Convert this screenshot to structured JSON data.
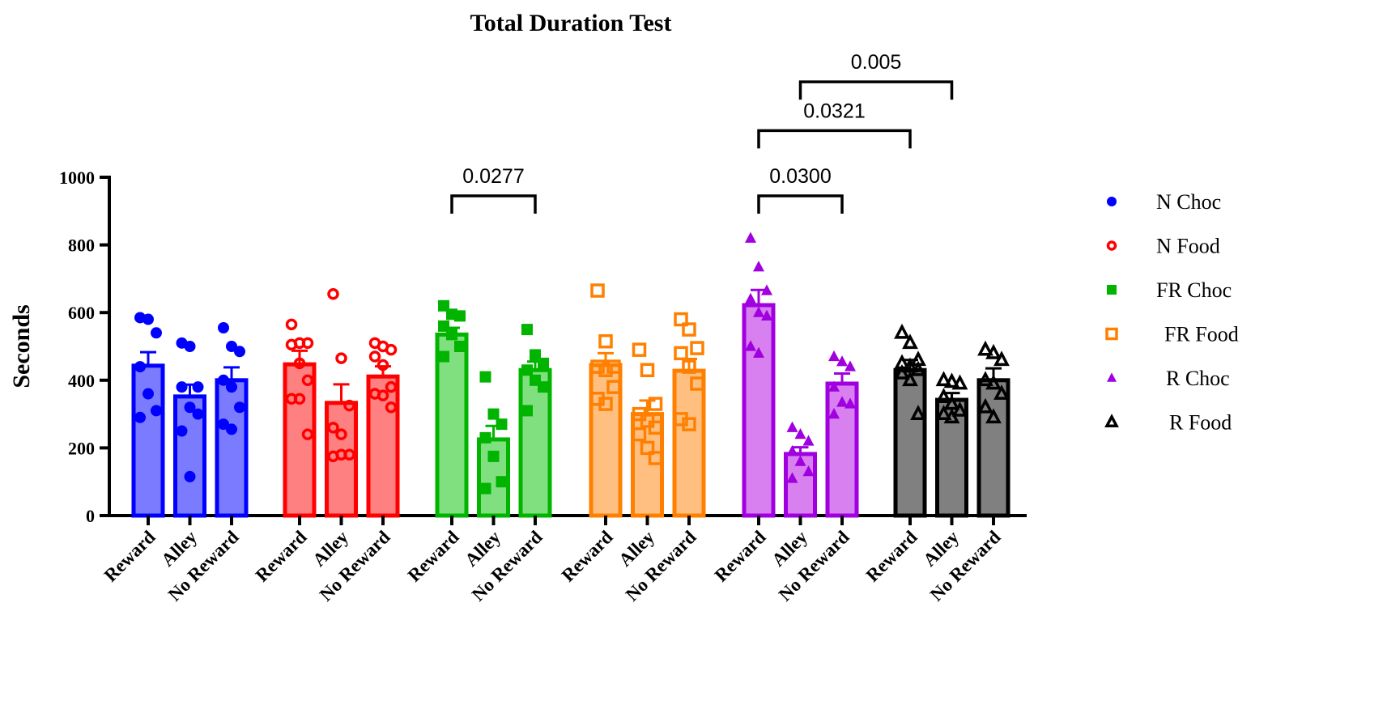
{
  "chart_data": {
    "type": "bar",
    "title": "Total Duration Test",
    "xlabel": "",
    "ylabel": "Seconds",
    "ylim": [
      0,
      1000
    ],
    "yticks": [
      0,
      200,
      400,
      600,
      800,
      1000
    ],
    "grid": false,
    "legend_position": "right",
    "categories": [
      "Reward",
      "Alley",
      "No Reward"
    ],
    "series": [
      {
        "name": "N Choc",
        "marker": "filled-circle",
        "color": "#0000ff",
        "fill": "#7b7bff",
        "values": [
          443,
          352,
          400
        ],
        "sem": [
          40,
          35,
          38
        ],
        "points": [
          [
            585,
            580,
            540,
            440,
            360,
            310,
            290
          ],
          [
            510,
            500,
            380,
            380,
            320,
            300,
            250,
            115
          ],
          [
            555,
            500,
            485,
            400,
            380,
            320,
            270,
            255
          ]
        ]
      },
      {
        "name": "N Food",
        "marker": "open-circle",
        "color": "#ff0000",
        "fill": "#ff8080",
        "values": [
          447,
          333,
          411
        ],
        "sem": [
          40,
          55,
          30
        ],
        "points": [
          [
            565,
            510,
            510,
            505,
            450,
            400,
            345,
            345,
            240
          ],
          [
            655,
            465,
            325,
            260,
            240,
            180,
            175,
            180
          ],
          [
            510,
            500,
            490,
            470,
            445,
            380,
            360,
            355,
            320
          ]
        ]
      },
      {
        "name": "FR Choc",
        "marker": "filled-square",
        "color": "#00b400",
        "fill": "#80e080",
        "values": [
          535,
          225,
          430
        ],
        "sem": [
          20,
          40,
          25
        ],
        "points": [
          [
            620,
            595,
            590,
            560,
            535,
            500,
            470
          ],
          [
            410,
            300,
            270,
            230,
            175,
            100,
            80
          ],
          [
            550,
            475,
            450,
            430,
            400,
            380,
            310
          ]
        ]
      },
      {
        "name": "FR Food",
        "marker": "open-square",
        "color": "#ff8000",
        "fill": "#ffbf80",
        "values": [
          445,
          300,
          428
        ],
        "sem": [
          35,
          40,
          35
        ],
        "points": [
          [
            665,
            515,
            440,
            440,
            430,
            380,
            345,
            330
          ],
          [
            490,
            430,
            330,
            300,
            280,
            260,
            240,
            200,
            170
          ],
          [
            580,
            550,
            495,
            480,
            440,
            390,
            285,
            270
          ]
        ]
      },
      {
        "name": "R Choc",
        "marker": "filled-triangle",
        "color": "#a000e0",
        "fill": "#d880f0",
        "values": [
          622,
          182,
          390
        ],
        "sem": [
          45,
          20,
          30
        ],
        "points": [
          [
            820,
            735,
            665,
            640,
            600,
            590,
            500,
            480
          ],
          [
            260,
            240,
            220,
            190,
            160,
            130,
            110
          ],
          [
            470,
            455,
            440,
            380,
            335,
            330,
            300
          ]
        ]
      },
      {
        "name": "R Food",
        "marker": "open-triangle",
        "color": "#000000",
        "fill": "#808080",
        "values": [
          430,
          342,
          400
        ],
        "sem": [
          30,
          20,
          35
        ],
        "points": [
          [
            540,
            510,
            460,
            450,
            440,
            430,
            420,
            400,
            300
          ],
          [
            400,
            395,
            390,
            350,
            330,
            310,
            300,
            290
          ],
          [
            490,
            480,
            460,
            400,
            390,
            360,
            320,
            290
          ]
        ]
      }
    ],
    "annotations": [
      {
        "label": "0.0277",
        "from": [
          2,
          0
        ],
        "to": [
          2,
          2
        ],
        "level": 945
      },
      {
        "label": "0.0300",
        "from": [
          4,
          0
        ],
        "to": [
          4,
          2
        ],
        "level": 945
      },
      {
        "label": "0.0321",
        "from": [
          4,
          0
        ],
        "to": [
          5,
          0
        ],
        "level": 1138
      },
      {
        "label": "0.005",
        "from": [
          4,
          1
        ],
        "to": [
          5,
          1
        ],
        "level": 1282
      }
    ]
  }
}
